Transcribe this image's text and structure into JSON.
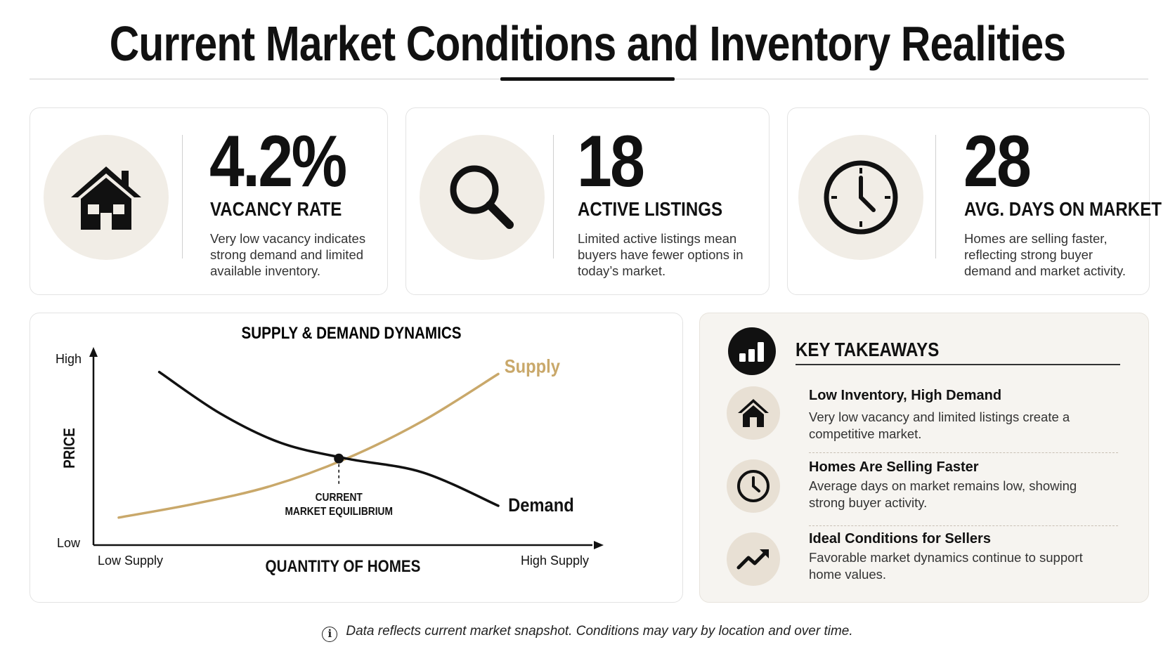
{
  "title": "Current Market Conditions and Inventory Realities",
  "stats": [
    {
      "value": "4.2%",
      "label": "VACANCY RATE",
      "desc": "Very low vacancy indicates strong demand and limited available inventory.",
      "icon": "house-icon"
    },
    {
      "value": "18",
      "label": "ACTIVE LISTINGS",
      "desc": "Limited active listings mean buyers have fewer options in today’s market.",
      "icon": "magnifier-icon"
    },
    {
      "value": "28",
      "label": "AVG. DAYS ON MARKET",
      "desc": "Homes are selling faster, reflecting strong buyer demand and market activity.",
      "icon": "clock-icon"
    }
  ],
  "chart_data": {
    "type": "line",
    "title": "SUPPLY & DEMAND DYNAMICS",
    "xlabel": "QUANTITY OF HOMES",
    "ylabel": "PRICE",
    "x_ticks": [
      "Low Supply",
      "High Supply"
    ],
    "y_ticks": [
      "Low",
      "High"
    ],
    "xlim": [
      0,
      10
    ],
    "ylim": [
      0,
      10
    ],
    "series": [
      {
        "name": "Supply",
        "color": "#c9a86a",
        "x": [
          0.5,
          2,
          3.5,
          5,
          6.5,
          8
        ],
        "y": [
          1.4,
          2.1,
          3.0,
          4.4,
          6.3,
          8.7
        ]
      },
      {
        "name": "Demand",
        "color": "#111111",
        "x": [
          1.3,
          2.5,
          3.7,
          5,
          6.5,
          8
        ],
        "y": [
          8.8,
          6.7,
          5.2,
          4.4,
          3.7,
          2.0
        ]
      }
    ],
    "annotation": {
      "label": [
        "CURRENT",
        "MARKET EQUILIBRIUM"
      ],
      "x": 4.7,
      "y": 3.8
    },
    "grid": false,
    "legend": "inline"
  },
  "takeaways": {
    "title": "KEY TAKEAWAYS",
    "items": [
      {
        "heading": "Low Inventory, High Demand",
        "desc": "Very low vacancy and limited listings create a competitive market.",
        "icon": "house-icon"
      },
      {
        "heading": "Homes Are Selling Faster",
        "desc": "Average days on market remains low, showing strong buyer activity.",
        "icon": "clock-icon"
      },
      {
        "heading": "Ideal Conditions for Sellers",
        "desc": "Favorable market dynamics continue to support home values.",
        "icon": "trend-up-icon"
      }
    ]
  },
  "footer": "Data reflects current market snapshot. Conditions may vary by location and over time."
}
